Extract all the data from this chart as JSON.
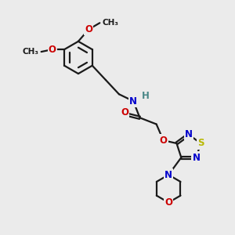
{
  "bg_color": "#ebebeb",
  "bond_color": "#1a1a1a",
  "bond_lw": 1.6,
  "atom_colors": {
    "O": "#cc0000",
    "N": "#0000cc",
    "S": "#b8b800",
    "H": "#4a8888",
    "C": "#1a1a1a"
  },
  "font_size": 8.5,
  "font_size_small": 7.5
}
